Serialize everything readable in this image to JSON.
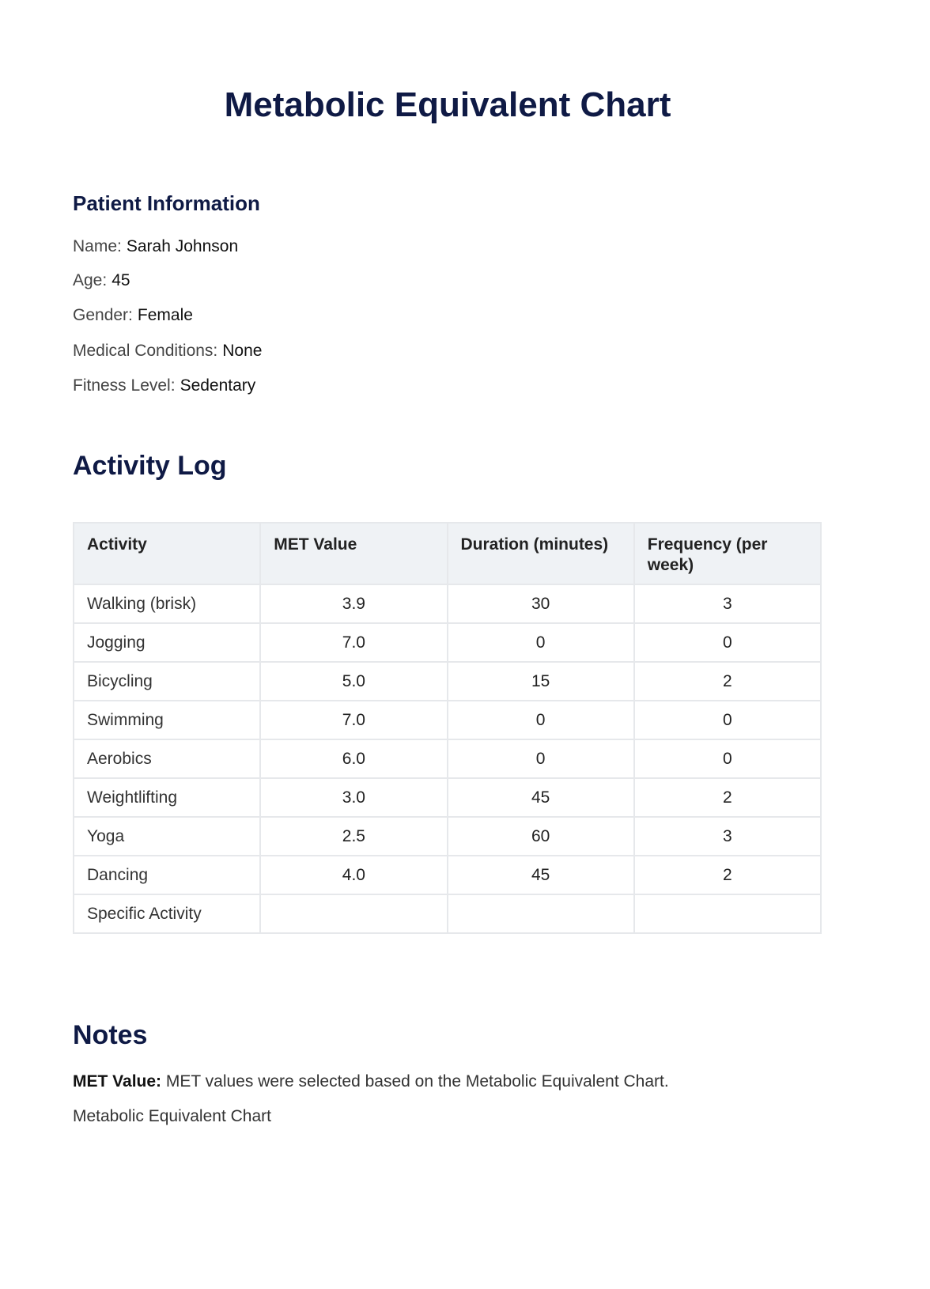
{
  "title": "Metabolic Equivalent Chart",
  "patient": {
    "heading": "Patient Information",
    "fields": [
      {
        "label": "Name:",
        "value": "Sarah Johnson"
      },
      {
        "label": "Age:",
        "value": "45"
      },
      {
        "label": "Gender:",
        "value": "Female"
      },
      {
        "label": "Medical Conditions:",
        "value": "None"
      },
      {
        "label": "Fitness Level:",
        "value": "Sedentary"
      }
    ]
  },
  "activity_log": {
    "heading": "Activity Log",
    "columns": [
      "Activity",
      "MET Value",
      "Duration (minutes)",
      "Frequency (per week)"
    ],
    "rows": [
      [
        "Walking (brisk)",
        "3.9",
        "30",
        "3"
      ],
      [
        "Jogging",
        "7.0",
        "0",
        "0"
      ],
      [
        "Bicycling",
        "5.0",
        "15",
        "2"
      ],
      [
        "Swimming",
        "7.0",
        "0",
        "0"
      ],
      [
        "Aerobics",
        "6.0",
        "0",
        "0"
      ],
      [
        "Weightlifting",
        "3.0",
        "45",
        "2"
      ],
      [
        "Yoga",
        "2.5",
        "60",
        "3"
      ],
      [
        "Dancing",
        "4.0",
        "45",
        "2"
      ],
      [
        "Specific Activity",
        "",
        "",
        ""
      ]
    ]
  },
  "notes": {
    "heading": "Notes",
    "label": "MET Value:",
    "text": "MET values were selected based on the Metabolic Equivalent Chart.",
    "footer": "Metabolic Equivalent Chart"
  }
}
